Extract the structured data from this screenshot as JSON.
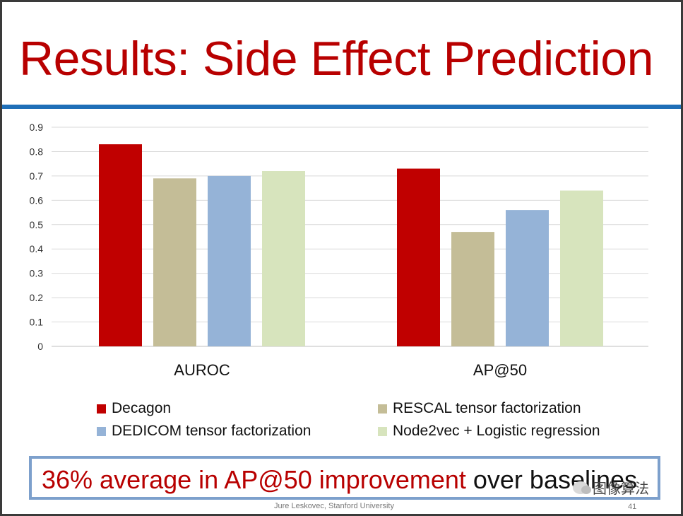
{
  "slide": {
    "title": "Results: Side Effect Prediction",
    "footer": "Jure Leskovec, Stanford University",
    "page_number": "41",
    "callout_highlight": "36% average in AP@50 improvement",
    "callout_rest": "over baselines",
    "watermark": "图像算法"
  },
  "colors": {
    "title": "#b80000",
    "rule": "#1f6fb8",
    "callout_border": "#7da0cc"
  },
  "chart_data": {
    "type": "bar",
    "categories": [
      "AUROC",
      "AP@50"
    ],
    "series": [
      {
        "name": "Decagon",
        "color": "#c00000",
        "values": [
          0.83,
          0.73
        ]
      },
      {
        "name": "RESCAL tensor factorization",
        "color": "#c4bd97",
        "values": [
          0.69,
          0.47
        ]
      },
      {
        "name": "DEDICOM tensor factorization",
        "color": "#95b3d7",
        "values": [
          0.7,
          0.56
        ]
      },
      {
        "name": "Node2vec + Logistic regression",
        "color": "#d7e4bd",
        "values": [
          0.72,
          0.64
        ]
      }
    ],
    "ylim": [
      0,
      0.9
    ],
    "yticks": [
      "0",
      "0.1",
      "0.2",
      "0.3",
      "0.4",
      "0.5",
      "0.6",
      "0.7",
      "0.8",
      "0.9"
    ],
    "grid": true,
    "legend_position": "bottom"
  }
}
